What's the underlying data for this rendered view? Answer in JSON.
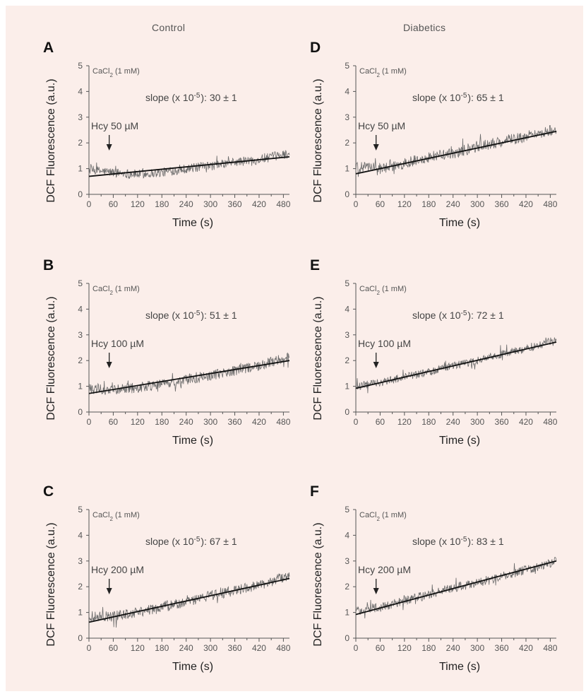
{
  "figure": {
    "column_titles": [
      "Control",
      "Diabetics"
    ]
  },
  "chart_data": [
    {
      "type": "line",
      "panel_label": "A",
      "group": "Control",
      "stimulus": "CaCl2 (1 mM)",
      "hcy_label": "Hcy 50 µM",
      "arrow_at_x": 50,
      "slope_label": "slope (x 10",
      "slope_exp": "-5",
      "slope_value": "): 30 ± 1",
      "xlabel": "Time (s)",
      "ylabel": "DCF Fluorescence (a.u.)",
      "x_ticks": [
        "0",
        "60",
        "120",
        "180",
        "240",
        "300",
        "360",
        "420",
        "480"
      ],
      "y_ticks": [
        "0",
        "1",
        "2",
        "3",
        "4",
        "5"
      ],
      "xlim": [
        0,
        495
      ],
      "ylim": [
        0,
        5
      ],
      "series": [
        {
          "kind": "fit",
          "x": [
            0,
            495
          ],
          "y": [
            0.7,
            1.46
          ]
        },
        {
          "kind": "trace",
          "x": [
            0,
            60,
            120,
            180,
            240,
            300,
            360,
            420,
            495
          ],
          "y": [
            0.95,
            0.85,
            0.78,
            0.85,
            1.0,
            1.1,
            1.25,
            1.35,
            1.6
          ],
          "noise": 0.18
        }
      ]
    },
    {
      "type": "line",
      "panel_label": "B",
      "group": "Control",
      "stimulus": "CaCl2 (1 mM)",
      "hcy_label": "Hcy 100 µM",
      "arrow_at_x": 50,
      "slope_label": "slope (x 10",
      "slope_exp": "-5",
      "slope_value": "): 51 ± 1",
      "xlabel": "Time (s)",
      "ylabel": "DCF Fluorescence (a.u.)",
      "x_ticks": [
        "0",
        "60",
        "120",
        "180",
        "240",
        "300",
        "360",
        "420",
        "480"
      ],
      "y_ticks": [
        "0",
        "1",
        "2",
        "3",
        "4",
        "5"
      ],
      "xlim": [
        0,
        495
      ],
      "ylim": [
        0,
        5
      ],
      "series": [
        {
          "kind": "fit",
          "x": [
            0,
            495
          ],
          "y": [
            0.72,
            2.0
          ]
        },
        {
          "kind": "trace",
          "x": [
            0,
            60,
            120,
            180,
            240,
            300,
            360,
            420,
            495
          ],
          "y": [
            0.9,
            0.85,
            0.95,
            1.1,
            1.25,
            1.4,
            1.6,
            1.8,
            2.15
          ],
          "noise": 0.2
        }
      ]
    },
    {
      "type": "line",
      "panel_label": "C",
      "group": "Control",
      "stimulus": "CaCl2 (1 mM)",
      "hcy_label": "Hcy 200 µM",
      "arrow_at_x": 50,
      "slope_label": "slope (x 10",
      "slope_exp": "-5",
      "slope_value": "): 67 ± 1",
      "xlabel": "Time (s)",
      "ylabel": "DCF Fluorescence (a.u.)",
      "x_ticks": [
        "0",
        "60",
        "120",
        "180",
        "240",
        "300",
        "360",
        "420",
        "480"
      ],
      "y_ticks": [
        "0",
        "1",
        "2",
        "3",
        "4",
        "5"
      ],
      "xlim": [
        0,
        495
      ],
      "ylim": [
        0,
        5
      ],
      "series": [
        {
          "kind": "fit",
          "x": [
            0,
            495
          ],
          "y": [
            0.62,
            2.32
          ]
        },
        {
          "kind": "trace",
          "x": [
            0,
            60,
            120,
            180,
            240,
            300,
            360,
            420,
            495
          ],
          "y": [
            0.85,
            0.85,
            1.0,
            1.2,
            1.4,
            1.65,
            1.85,
            2.05,
            2.45
          ],
          "noise": 0.2
        }
      ]
    },
    {
      "type": "line",
      "panel_label": "D",
      "group": "Diabetics",
      "stimulus": "CaCl2 (1 mM)",
      "hcy_label": "Hcy 50 µM",
      "arrow_at_x": 50,
      "slope_label": "slope (x 10",
      "slope_exp": "-5",
      "slope_value": "): 65 ± 1",
      "xlabel": "Time (s)",
      "ylabel": "DCF Fluorescence (a.u.)",
      "x_ticks": [
        "0",
        "60",
        "120",
        "180",
        "240",
        "300",
        "360",
        "420",
        "480"
      ],
      "y_ticks": [
        "0",
        "1",
        "2",
        "3",
        "4",
        "5"
      ],
      "xlim": [
        0,
        495
      ],
      "ylim": [
        0,
        5
      ],
      "series": [
        {
          "kind": "fit",
          "x": [
            0,
            495
          ],
          "y": [
            0.8,
            2.45
          ]
        },
        {
          "kind": "trace",
          "x": [
            0,
            60,
            120,
            180,
            240,
            300,
            360,
            420,
            495
          ],
          "y": [
            1.05,
            1.0,
            1.2,
            1.45,
            1.6,
            1.85,
            2.05,
            2.25,
            2.55
          ],
          "noise": 0.22
        }
      ]
    },
    {
      "type": "line",
      "panel_label": "E",
      "group": "Diabetics",
      "stimulus": "CaCl2 (1 mM)",
      "hcy_label": "Hcy 100 µM",
      "arrow_at_x": 50,
      "slope_label": "slope (x 10",
      "slope_exp": "-5",
      "slope_value": "): 72 ± 1",
      "xlabel": "Time (s)",
      "ylabel": "DCF Fluorescence (a.u.)",
      "x_ticks": [
        "0",
        "60",
        "120",
        "180",
        "240",
        "300",
        "360",
        "420",
        "480"
      ],
      "y_ticks": [
        "0",
        "1",
        "2",
        "3",
        "4",
        "5"
      ],
      "xlim": [
        0,
        495
      ],
      "ylim": [
        0,
        5
      ],
      "series": [
        {
          "kind": "fit",
          "x": [
            0,
            495
          ],
          "y": [
            0.92,
            2.72
          ]
        },
        {
          "kind": "trace",
          "x": [
            0,
            60,
            120,
            180,
            240,
            300,
            360,
            420,
            495
          ],
          "y": [
            1.0,
            1.15,
            1.35,
            1.55,
            1.8,
            2.0,
            2.25,
            2.45,
            2.8
          ],
          "noise": 0.16
        }
      ]
    },
    {
      "type": "line",
      "panel_label": "F",
      "group": "Diabetics",
      "stimulus": "CaCl2 (1 mM)",
      "hcy_label": "Hcy 200 µM",
      "arrow_at_x": 50,
      "slope_label": "slope (x 10",
      "slope_exp": "-5",
      "slope_value": "): 83 ± 1",
      "xlabel": "Time (s)",
      "ylabel": "DCF Fluorescence (a.u.)",
      "x_ticks": [
        "0",
        "60",
        "120",
        "180",
        "240",
        "300",
        "360",
        "420",
        "480"
      ],
      "y_ticks": [
        "0",
        "1",
        "2",
        "3",
        "4",
        "5"
      ],
      "xlim": [
        0,
        495
      ],
      "ylim": [
        0,
        5
      ],
      "series": [
        {
          "kind": "fit",
          "x": [
            0,
            495
          ],
          "y": [
            0.92,
            3.0
          ]
        },
        {
          "kind": "trace",
          "x": [
            0,
            60,
            120,
            180,
            240,
            300,
            360,
            420,
            495
          ],
          "y": [
            1.05,
            1.2,
            1.45,
            1.7,
            1.95,
            2.15,
            2.4,
            2.65,
            3.0
          ],
          "noise": 0.18
        }
      ]
    }
  ]
}
